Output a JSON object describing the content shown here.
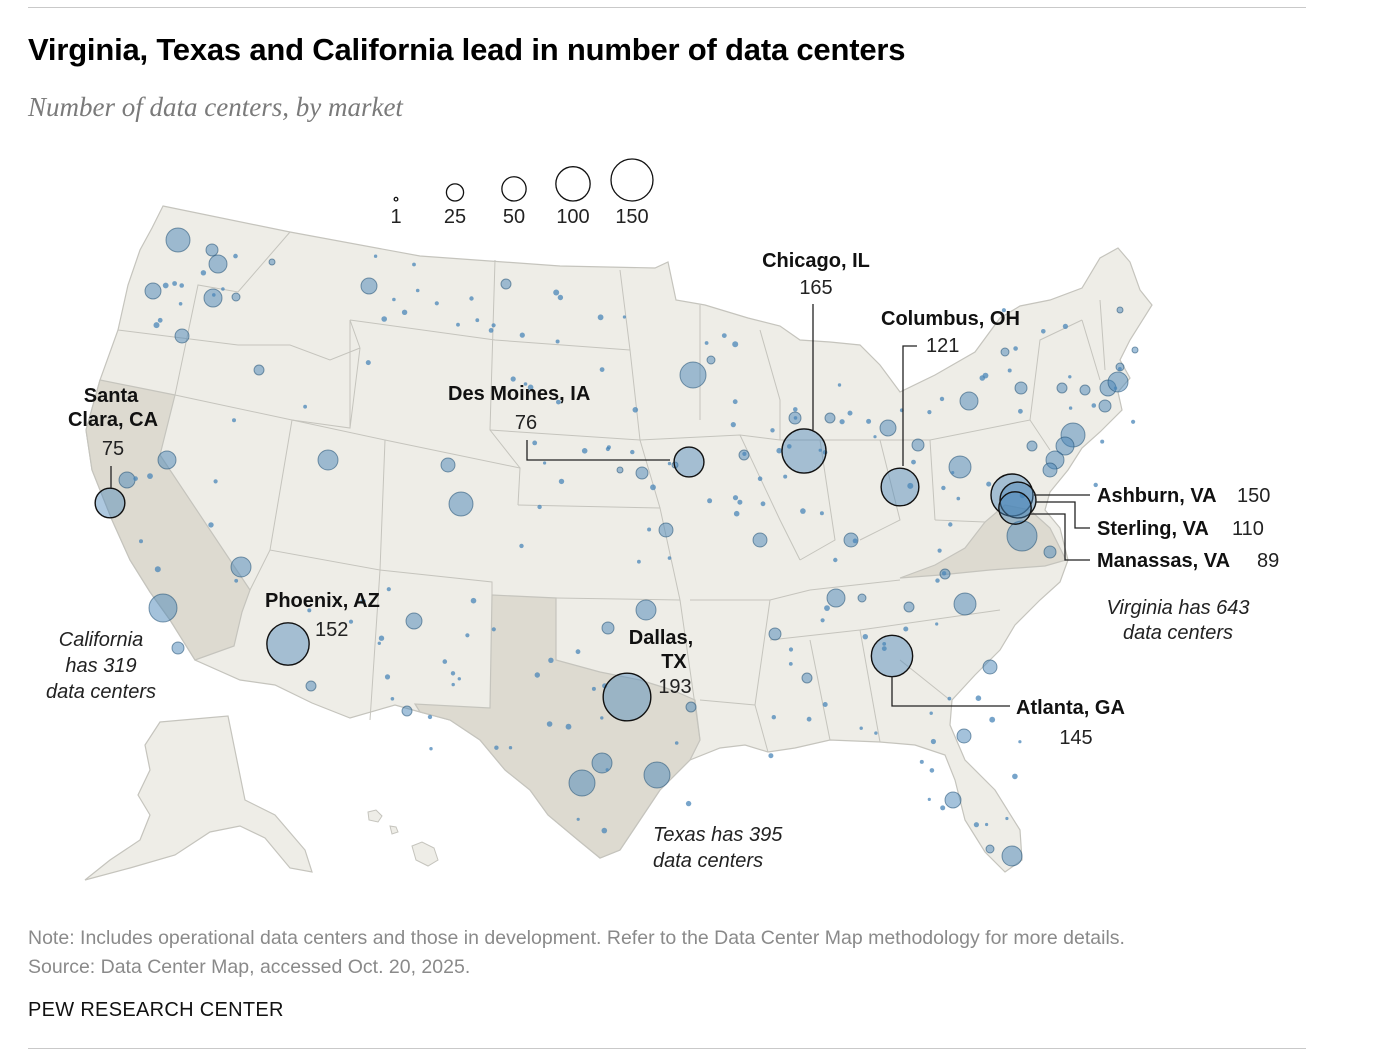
{
  "title": "Virginia, Texas and California lead in number of data centers",
  "subtitle": "Number of data centers, by market",
  "legend": {
    "sizes": [
      {
        "label": "1",
        "value": 1
      },
      {
        "label": "25",
        "value": 25
      },
      {
        "label": "50",
        "value": 50
      },
      {
        "label": "100",
        "value": 100
      },
      {
        "label": "150",
        "value": 150
      }
    ]
  },
  "markets": [
    {
      "name": "Santa Clara, CA",
      "name_line1": "Santa",
      "name_line2": "Clara, CA",
      "count": "75",
      "value": 75
    },
    {
      "name": "Phoenix, AZ",
      "count": "152",
      "value": 152
    },
    {
      "name": "Des Moines, IA",
      "count": "76",
      "value": 76
    },
    {
      "name": "Chicago, IL",
      "count": "165",
      "value": 165
    },
    {
      "name": "Columbus, OH",
      "count": "121",
      "value": 121
    },
    {
      "name": "Dallas, TX",
      "name_line1": "Dallas,",
      "name_line2": "TX",
      "count": "193",
      "value": 193
    },
    {
      "name": "Atlanta, GA",
      "count": "145",
      "value": 145
    },
    {
      "name": "Ashburn, VA",
      "count": "150",
      "value": 150
    },
    {
      "name": "Sterling, VA",
      "count": "110",
      "value": 110
    },
    {
      "name": "Manassas, VA",
      "count": "89",
      "value": 89
    }
  ],
  "state_notes": {
    "california": [
      "California",
      "has 319",
      "data centers"
    ],
    "texas": [
      "Texas has 395",
      "data centers"
    ],
    "virginia": [
      "Virginia has 643",
      "data centers"
    ]
  },
  "highlighted_states": [
    "California",
    "Texas",
    "Virginia"
  ],
  "colors": {
    "land": "#eeede7",
    "highlight_land": "#dddad0",
    "border": "#c5c4bd",
    "bubble_fill": "#4a86b8",
    "bubble_stroke": "#1f4e72"
  },
  "note": "Note: Includes operational data centers and those in development. Refer to the Data Center Map methodology for more details.",
  "source": "Source: Data Center Map, accessed Oct. 20, 2025.",
  "brand": "PEW RESEARCH CENTER"
}
